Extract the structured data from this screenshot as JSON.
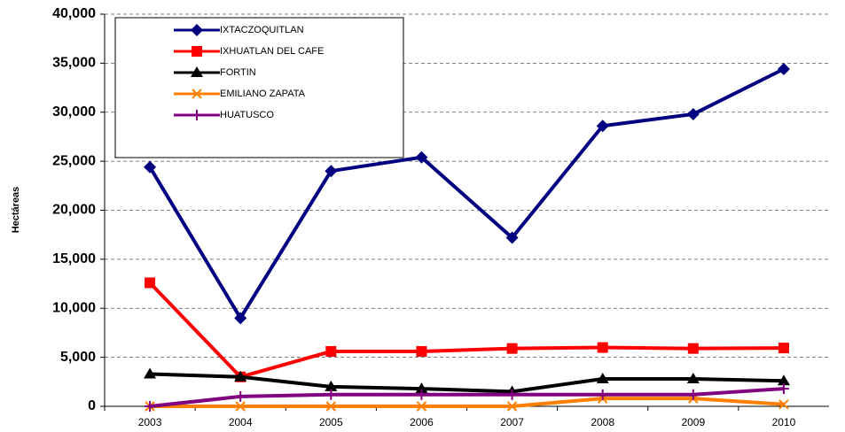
{
  "chart_data": {
    "type": "line",
    "y_label": "Hectáreas",
    "categories": [
      "2003",
      "2004",
      "2005",
      "2006",
      "2007",
      "2008",
      "2009",
      "2010"
    ],
    "series": [
      {
        "name": "IXTACZOQUITLAN",
        "color": "#000080",
        "marker": "diamond",
        "values": [
          24400,
          9000,
          24000,
          25400,
          17200,
          28600,
          29800,
          34400
        ]
      },
      {
        "name": "IXHUATLAN DEL CAFE",
        "color": "#ff0000",
        "marker": "square",
        "values": [
          12600,
          3000,
          5600,
          5600,
          5900,
          6000,
          5900,
          5950
        ]
      },
      {
        "name": "FORTIN",
        "color": "#000000",
        "marker": "triangle",
        "values": [
          3300,
          3000,
          2000,
          1800,
          1500,
          2800,
          2800,
          2600
        ]
      },
      {
        "name": "EMILIANO ZAPATA",
        "color": "#ff8000",
        "marker": "x",
        "values": [
          0,
          0,
          0,
          0,
          0,
          800,
          800,
          200
        ]
      },
      {
        "name": "HUATUSCO",
        "color": "#800080",
        "marker": "plus",
        "values": [
          0,
          1000,
          1200,
          1200,
          1200,
          1200,
          1200,
          1800
        ]
      }
    ],
    "ylim": [
      0,
      40000
    ],
    "yticks": [
      0,
      {
        "value": 5000,
        "label": "5,000"
      },
      {
        "value": 10000,
        "label": "10,000"
      },
      {
        "value": 15000,
        "label": "15,000"
      },
      {
        "value": 20000,
        "label": "20,000"
      },
      {
        "value": 25000,
        "label": "25,000"
      },
      {
        "value": 30000,
        "label": "30,000"
      },
      {
        "value": 35000,
        "label": "35,000"
      },
      {
        "value": 40000,
        "label": "40,000"
      }
    ],
    "grid": true,
    "legend": "upper left"
  }
}
